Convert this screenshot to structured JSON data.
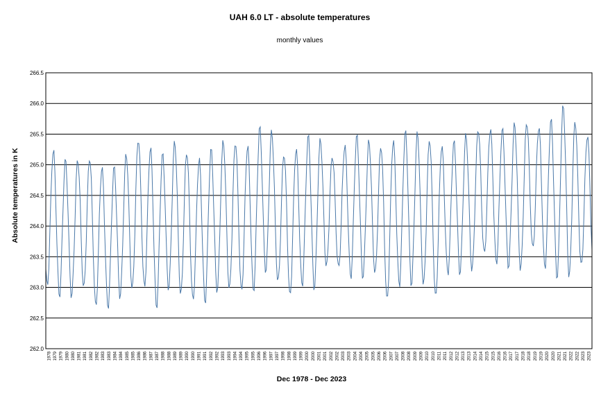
{
  "chart_data": {
    "type": "line",
    "title": "UAH 6.0 LT - absolute temperatures",
    "subtitle": "monthly values",
    "xlabel": "Dec 1978 - Dec 2023",
    "ylabel": "Absolute temperatures in K",
    "ylim": [
      262.0,
      266.5
    ],
    "yticks": [
      "262.0",
      "262.5",
      "263.0",
      "263.5",
      "264.0",
      "264.5",
      "265.0",
      "265.5",
      "266.0",
      "266.5"
    ],
    "grid": "horizontal",
    "legend": "none",
    "series_color": "#4a78a8",
    "grid_color": "#000000",
    "start": "1978-12",
    "end": "2023-12",
    "years": [
      1978,
      1979,
      1980,
      1981,
      1982,
      1983,
      1984,
      1985,
      1986,
      1987,
      1988,
      1989,
      1990,
      1991,
      1992,
      1993,
      1994,
      1995,
      1996,
      1997,
      1998,
      1999,
      2000,
      2001,
      2002,
      2003,
      2004,
      2005,
      2006,
      2007,
      2008,
      2009,
      2010,
      2011,
      2012,
      2013,
      2014,
      2015,
      2016,
      2017,
      2018,
      2019,
      2020,
      2021,
      2022,
      2023
    ],
    "x_tick_labels": [
      "1978",
      "1979",
      "1979",
      "1980",
      "1980",
      "1981",
      "1981",
      "1982",
      "1982",
      "1983",
      "1983",
      "1984",
      "1984",
      "1985",
      "1985",
      "1986",
      "1986",
      "1987",
      "1987",
      "1988",
      "1988",
      "1989",
      "1989",
      "1990",
      "1990",
      "1991",
      "1991",
      "1992",
      "1992",
      "1993",
      "1993",
      "1994",
      "1994",
      "1995",
      "1995",
      "1996",
      "1996",
      "1997",
      "1997",
      "1998",
      "1998",
      "1999",
      "1999",
      "2000",
      "2000",
      "2001",
      "2001",
      "2002",
      "2002",
      "2003",
      "2003",
      "2004",
      "2004",
      "2005",
      "2005",
      "2006",
      "2006",
      "2007",
      "2007",
      "2008",
      "2008",
      "2009",
      "2009",
      "2010",
      "2010",
      "2011",
      "2011",
      "2012",
      "2012",
      "2013",
      "2013",
      "2014",
      "2014",
      "2015",
      "2015",
      "2016",
      "2016",
      "2017",
      "2017",
      "2018",
      "2018",
      "2019",
      "2019",
      "2020",
      "2020",
      "2021",
      "2021",
      "2022",
      "2022",
      "2023",
      "2023"
    ],
    "yearly_min": [
      262.7,
      263.0,
      262.9,
      262.85,
      262.95,
      262.7,
      262.7,
      262.8,
      262.95,
      263.05,
      262.65,
      262.95,
      262.9,
      262.8,
      262.7,
      262.95,
      263.0,
      262.9,
      262.9,
      263.3,
      263.1,
      262.8,
      263.05,
      263.0,
      263.3,
      263.3,
      263.2,
      263.15,
      263.2,
      262.8,
      263.05,
      263.0,
      263.05,
      262.85,
      263.2,
      263.2,
      263.3,
      263.55,
      263.35,
      263.35,
      263.3,
      263.6,
      263.3,
      263.2,
      263.15,
      263.3
    ],
    "yearly_max": [
      265.1,
      265.25,
      265.2,
      264.9,
      265.3,
      265.0,
      264.85,
      265.05,
      265.35,
      265.45,
      265.1,
      265.3,
      265.45,
      264.95,
      265.25,
      265.3,
      265.4,
      265.35,
      265.35,
      265.8,
      265.25,
      265.2,
      265.35,
      265.5,
      265.35,
      265.05,
      265.5,
      265.4,
      265.45,
      265.2,
      265.5,
      265.6,
      265.5,
      265.3,
      265.3,
      265.5,
      265.45,
      265.65,
      265.6,
      265.6,
      265.65,
      265.75,
      265.6,
      265.8,
      266.05,
      265.5
    ]
  }
}
